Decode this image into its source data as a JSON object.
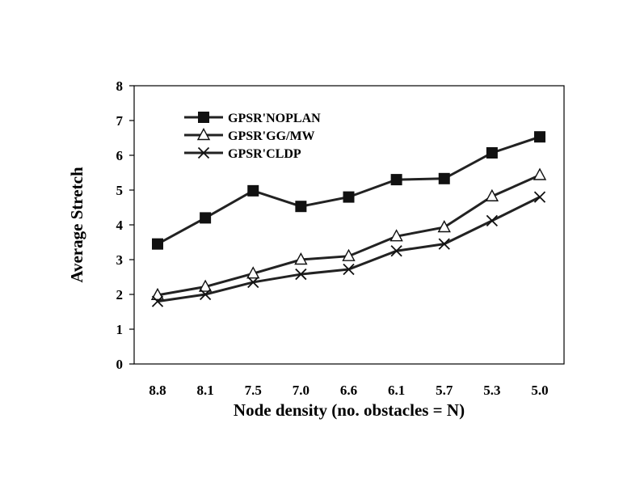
{
  "chart_data": {
    "type": "line",
    "title": "",
    "xlabel": "Node density (no. obstacles = N)",
    "ylabel": "Average Stretch",
    "categories": [
      "8.8",
      "8.1",
      "7.5",
      "7.0",
      "6.6",
      "6.1",
      "5.7",
      "5.3",
      "5.0"
    ],
    "ylim": [
      0,
      8
    ],
    "yticks": [
      "0",
      "1",
      "2",
      "3",
      "4",
      "5",
      "6",
      "7",
      "8"
    ],
    "grid": false,
    "legend_position": "top-left",
    "series": [
      {
        "name": "GPSR'NOPLAN",
        "marker": "filled-square",
        "color": "#222222",
        "values": [
          3.45,
          4.2,
          4.98,
          4.53,
          4.8,
          5.3,
          5.33,
          6.07,
          6.53
        ]
      },
      {
        "name": "GPSR'GG/MW",
        "marker": "open-triangle",
        "color": "#222222",
        "values": [
          1.98,
          2.22,
          2.6,
          3.0,
          3.1,
          3.67,
          3.93,
          4.82,
          5.43
        ]
      },
      {
        "name": "GPSR'CLDP",
        "marker": "x-cross",
        "color": "#222222",
        "values": [
          1.8,
          2.0,
          2.35,
          2.58,
          2.72,
          3.25,
          3.45,
          4.12,
          4.8
        ]
      }
    ]
  }
}
